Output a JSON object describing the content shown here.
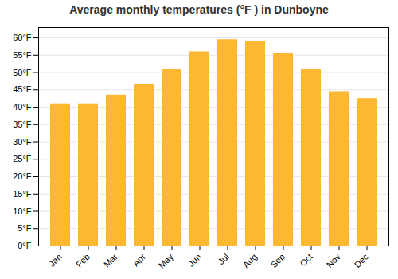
{
  "chart_data": {
    "type": "bar",
    "title": "Average monthly temperatures (°F ) in Dunboyne",
    "categories": [
      "Jan",
      "Feb",
      "Mar",
      "Apr",
      "May",
      "Jun",
      "Jul",
      "Aug",
      "Sep",
      "Oct",
      "Nov",
      "Dec"
    ],
    "values": [
      41,
      41,
      43.5,
      46.5,
      51,
      56,
      59.5,
      59,
      55.5,
      51,
      44.5,
      42.5
    ],
    "color": "#FDB833",
    "ylim": [
      0,
      63
    ],
    "yticks": [
      {
        "value": 0,
        "label": "0°F"
      },
      {
        "value": 5,
        "label": "5°F"
      },
      {
        "value": 10,
        "label": "10°F"
      },
      {
        "value": 15,
        "label": "15°F"
      },
      {
        "value": 20,
        "label": "20°F"
      },
      {
        "value": 25,
        "label": "25°F"
      },
      {
        "value": 30,
        "label": "30°F"
      },
      {
        "value": 35,
        "label": "35°F"
      },
      {
        "value": 40,
        "label": "40°F"
      },
      {
        "value": 45,
        "label": "45°F"
      },
      {
        "value": 50,
        "label": "50°F"
      },
      {
        "value": 55,
        "label": "55°F"
      },
      {
        "value": 60,
        "label": "60°F"
      }
    ],
    "grid": true
  }
}
